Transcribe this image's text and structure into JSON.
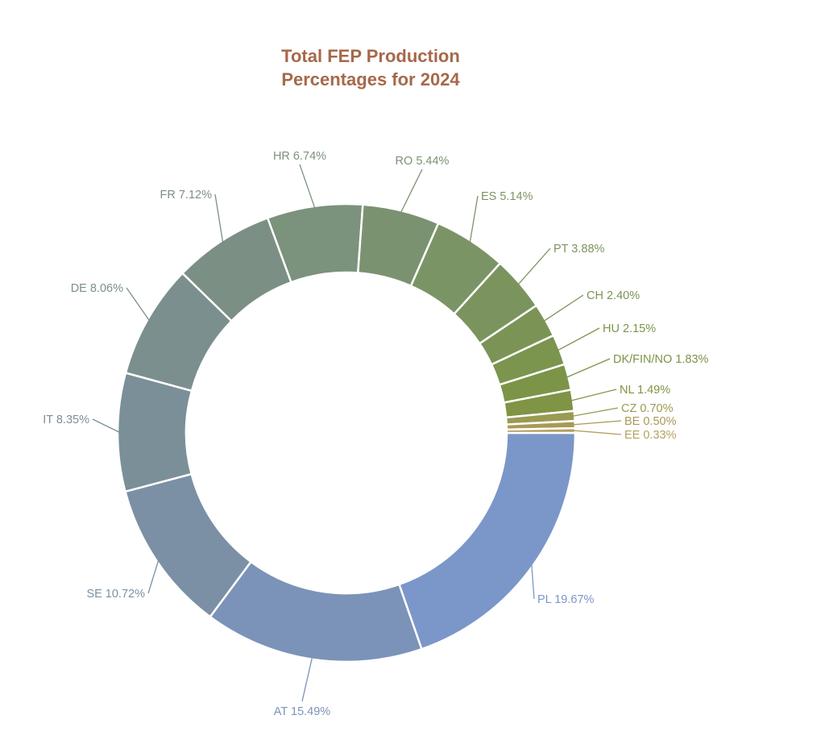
{
  "chart_data": {
    "type": "pie",
    "variant": "donut",
    "title_lines": [
      "Total FEP Production",
      "Percentages for 2024"
    ],
    "direction": "clockwise",
    "start": "3 o'clock",
    "slices": [
      {
        "label": "PL",
        "value": 19.67,
        "text": "PL 19.67%",
        "color": "#7b96c8"
      },
      {
        "label": "AT",
        "value": 15.49,
        "text": "AT 15.49%",
        "color": "#7b93b8"
      },
      {
        "label": "SE",
        "value": 10.72,
        "text": "SE 10.72%",
        "color": "#7b90a4"
      },
      {
        "label": "IT",
        "value": 8.35,
        "text": "IT 8.35%",
        "color": "#7b8f98"
      },
      {
        "label": "DE",
        "value": 8.06,
        "text": "DE 8.06%",
        "color": "#7b8f8e"
      },
      {
        "label": "FR",
        "value": 7.12,
        "text": "FR 7.12%",
        "color": "#7b8f85"
      },
      {
        "label": "HR",
        "value": 6.74,
        "text": "HR 6.74%",
        "color": "#7b927c"
      },
      {
        "label": "RO",
        "value": 5.44,
        "text": "RO 5.44%",
        "color": "#7b9270"
      },
      {
        "label": "ES",
        "value": 5.14,
        "text": "ES 5.14%",
        "color": "#7b9466"
      },
      {
        "label": "PT",
        "value": 3.88,
        "text": "PT 3.88%",
        "color": "#7b945e"
      },
      {
        "label": "CH",
        "value": 2.4,
        "text": "CH 2.40%",
        "color": "#7b9456"
      },
      {
        "label": "HU",
        "value": 2.15,
        "text": "HU 2.15%",
        "color": "#7b944e"
      },
      {
        "label": "DK/FIN/NO",
        "value": 1.83,
        "text": "DK/FIN/NO 1.83%",
        "color": "#7c9448"
      },
      {
        "label": "NL",
        "value": 1.49,
        "text": "NL 1.49%",
        "color": "#7f9444"
      },
      {
        "label": "CZ",
        "value": 0.7,
        "text": "CZ 0.70%",
        "color": "#9a9a52"
      },
      {
        "label": "BE",
        "value": 0.5,
        "text": "BE 0.50%",
        "color": "#a89a55"
      },
      {
        "label": "EE",
        "value": 0.33,
        "text": "EE 0.33%",
        "color": "#b5a060"
      }
    ]
  }
}
